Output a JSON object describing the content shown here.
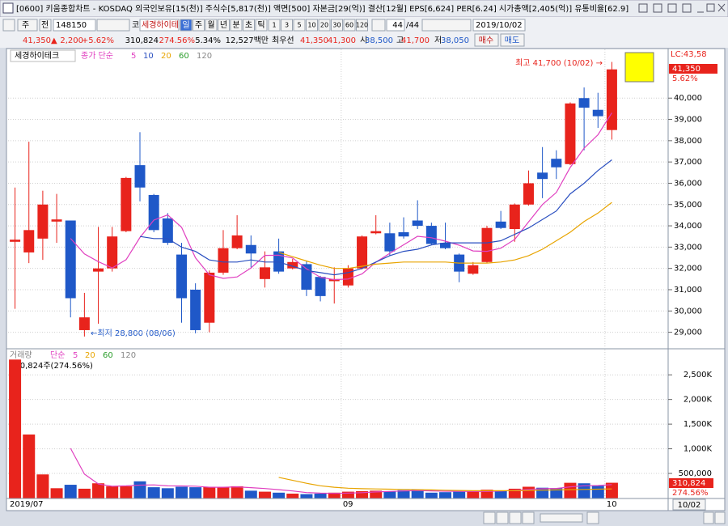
{
  "window": {
    "title_bar": "[0600] 키움종합차트 - KOSDAQ 외국인보유[15(천)] 주식수[5,817(천)] 액면[500] 자본금[29(억)] 결산[12월] EPS[6,624] PER[6.24] 시가총액[2,405(억)] 유통비율[62.9]",
    "toolbar": {
      "market": "주",
      "mode": "전",
      "code": "148150",
      "code_type": "코",
      "name": "세경하이테",
      "periods": [
        "일",
        "주",
        "월",
        "년",
        "분",
        "초",
        "틱"
      ],
      "intervals": [
        "1",
        "3",
        "5",
        "10",
        "20",
        "30",
        "60",
        "120"
      ],
      "count": "44",
      "total": "/44",
      "date": "2019/10/02"
    },
    "quote": {
      "price": "41,350▲",
      "change": "2,200",
      "rate": "+5.62%",
      "volume": "310,824",
      "volume_rate": "274.56%",
      "turnover": "5.34%",
      "amount": "12,527백만",
      "best_label": "최우선",
      "best_ask": "41,350",
      "best_bid": "41,300",
      "open_label": "시",
      "open": "38,500",
      "high_label": "고",
      "high": "41,700",
      "low_label": "저",
      "low": "38,050",
      "buy": "매수",
      "sell": "매도"
    }
  },
  "chart_data": [
    {
      "type": "candlestick",
      "title": "세경하이테크",
      "legend_title": "종가 단순",
      "up_color": "#e8231c",
      "down_color": "#1f58c8",
      "grid": true,
      "open": [
        33250,
        32750,
        33400,
        34200,
        34250,
        29100,
        31850,
        32000,
        33750,
        36850,
        35450,
        34350,
        32650,
        31000,
        29450,
        31800,
        32950,
        33100,
        31500,
        32800,
        32000,
        32200,
        31600,
        31400,
        31200,
        32000,
        33650,
        33650,
        33700,
        34250,
        34000,
        33200,
        32650,
        31750,
        32300,
        34200,
        33850,
        35000,
        36500,
        37150,
        36900,
        40000,
        39450,
        38500
      ],
      "high": [
        35800,
        37950,
        35650,
        35500,
        34250,
        30850,
        33950,
        33950,
        36300,
        38400,
        35500,
        34600,
        33200,
        31300,
        31900,
        33800,
        34500,
        33550,
        32800,
        33400,
        32450,
        32350,
        31650,
        32050,
        32150,
        33550,
        34500,
        34150,
        34400,
        35200,
        34150,
        34150,
        32700,
        32300,
        34000,
        34700,
        35050,
        36600,
        37700,
        37550,
        39800,
        40500,
        40250,
        41700
      ],
      "low": [
        30100,
        32250,
        32400,
        33200,
        29700,
        28800,
        29400,
        31850,
        33700,
        35150,
        33700,
        33100,
        29450,
        28950,
        29000,
        31700,
        32900,
        32050,
        31100,
        31750,
        31950,
        30700,
        30450,
        30350,
        31100,
        31950,
        33600,
        32600,
        33400,
        33850,
        33100,
        32900,
        31350,
        31700,
        32250,
        33850,
        33250,
        34950,
        35300,
        36200,
        36850,
        37550,
        38600,
        38050
      ],
      "close": [
        33350,
        33800,
        35000,
        34300,
        30600,
        29700,
        32000,
        33500,
        36250,
        35800,
        33800,
        33200,
        30600,
        29100,
        31800,
        32950,
        33550,
        32700,
        32050,
        31850,
        32300,
        31000,
        30700,
        31500,
        32000,
        33500,
        33750,
        32800,
        33500,
        34000,
        33150,
        32950,
        31850,
        32150,
        33900,
        33900,
        35000,
        36000,
        36200,
        36750,
        39750,
        39550,
        39150,
        41350
      ],
      "series": [
        {
          "name": "5",
          "color": "#e040c0",
          "values": [
            null,
            null,
            null,
            null,
            33410,
            32680,
            32320,
            32020,
            32410,
            33450,
            34270,
            34510,
            33930,
            32500,
            31700,
            31530,
            31600,
            32020,
            32610,
            32620,
            32490,
            31980,
            31580,
            31470,
            31500,
            31740,
            32290,
            32710,
            33110,
            33510,
            33440,
            33280,
            33090,
            32820,
            32800,
            32950,
            33360,
            34190,
            35000,
            35570,
            36740,
            37650,
            38280,
            39310
          ]
        },
        {
          "name": "10",
          "color": "#2a4fc0",
          "values": [
            null,
            null,
            null,
            null,
            null,
            null,
            null,
            null,
            null,
            33500,
            33400,
            33400,
            33000,
            32800,
            32400,
            32300,
            32300,
            32400,
            32300,
            32300,
            32100,
            31900,
            31800,
            31700,
            31800,
            32000,
            32300,
            32600,
            32800,
            32900,
            33100,
            33200,
            33200,
            33200,
            33200,
            33300,
            33600,
            33900,
            34300,
            34700,
            35500,
            36000,
            36600,
            37100
          ]
        },
        {
          "name": "20",
          "color": "#e8a400",
          "values": [
            null,
            null,
            null,
            null,
            null,
            null,
            null,
            null,
            null,
            null,
            null,
            null,
            null,
            null,
            null,
            null,
            null,
            null,
            null,
            32750,
            32550,
            32350,
            32150,
            32000,
            32000,
            32100,
            32200,
            32250,
            32300,
            32300,
            32300,
            32300,
            32250,
            32250,
            32250,
            32300,
            32400,
            32600,
            32900,
            33300,
            33700,
            34200,
            34600,
            35100
          ]
        }
      ],
      "legend_more": [
        {
          "name": "60",
          "color": "#2a9d2a"
        },
        {
          "name": "120",
          "color": "#888888"
        }
      ],
      "ylim": [
        28300,
        42100
      ],
      "yticks": [
        {
          "value": 29000,
          "label": "29,000"
        },
        {
          "value": 30000,
          "label": "30,000"
        },
        {
          "value": 31000,
          "label": "31,000"
        },
        {
          "value": 32000,
          "label": "32,000"
        },
        {
          "value": 33000,
          "label": "33,000"
        },
        {
          "value": 34000,
          "label": "34,000"
        },
        {
          "value": 35000,
          "label": "35,000"
        },
        {
          "value": 36000,
          "label": "36,000"
        },
        {
          "value": 37000,
          "label": "37,000"
        },
        {
          "value": 38000,
          "label": "38,000"
        },
        {
          "value": 39000,
          "label": "39,000"
        },
        {
          "value": 40000,
          "label": "40,000"
        }
      ],
      "corner_label": "LC:43,58",
      "last_label": "41,350",
      "change_label": "5.62%",
      "high_annotation": "최고 41,700 (10/02) →",
      "low_annotation": "←최저 28,800 (08/06)"
    },
    {
      "type": "bar",
      "title": "거래량",
      "legend_title": "단순",
      "note": "310,824주(274.56%)",
      "grid": true,
      "categories": [
        "2019/07",
        null,
        null,
        null,
        null,
        null,
        null,
        null,
        null,
        null,
        null,
        null,
        null,
        null,
        null,
        null,
        null,
        null,
        null,
        null,
        null,
        null,
        null,
        "09",
        null,
        null,
        null,
        null,
        null,
        null,
        null,
        null,
        null,
        null,
        null,
        null,
        null,
        null,
        null,
        null,
        null,
        null,
        "10",
        null
      ],
      "values": [
        2810000,
        1290000,
        480000,
        200000,
        270000,
        190000,
        300000,
        240000,
        240000,
        340000,
        220000,
        200000,
        230000,
        220000,
        230000,
        220000,
        240000,
        150000,
        130000,
        110000,
        90000,
        80000,
        90000,
        110000,
        130000,
        140000,
        150000,
        140000,
        160000,
        170000,
        110000,
        120000,
        130000,
        140000,
        170000,
        150000,
        190000,
        230000,
        210000,
        200000,
        310000,
        300000,
        250000,
        310824
      ],
      "series": [
        {
          "name": "5",
          "color": "#e040c0",
          "values": [
            null,
            null,
            null,
            null,
            1010000,
            486000,
            288000,
            240000,
            248000,
            262000,
            268000,
            248000,
            246000,
            242000,
            220000,
            220000,
            228000,
            212000,
            194000,
            170000,
            144000,
            112000,
            100000,
            96000,
            100000,
            110000,
            124000,
            134000,
            144000,
            152000,
            146000,
            140000,
            138000,
            134000,
            134000,
            142000,
            156000,
            176000,
            190000,
            196000,
            228000,
            250000,
            254000,
            274000
          ]
        },
        {
          "name": "20",
          "color": "#e8a400",
          "values": [
            null,
            null,
            null,
            null,
            null,
            null,
            null,
            null,
            null,
            null,
            null,
            null,
            null,
            null,
            null,
            null,
            null,
            null,
            null,
            420000,
            360000,
            300000,
            250000,
            220000,
            200000,
            190000,
            185000,
            180000,
            175000,
            170000,
            165000,
            160000,
            155000,
            150000,
            150000,
            150000,
            150000,
            155000,
            160000,
            165000,
            170000,
            175000,
            180000,
            185000
          ]
        }
      ],
      "legend_more": [
        {
          "name": "60",
          "color": "#2a9d2a"
        },
        {
          "name": "120",
          "color": "#888888"
        }
      ],
      "ylim": [
        0,
        2930000
      ],
      "yticks": [
        {
          "value": 500000,
          "label": "500,000"
        },
        {
          "value": 1000000,
          "label": "1,000K"
        },
        {
          "value": 1500000,
          "label": "1,500K"
        },
        {
          "value": 2000000,
          "label": "2,000K"
        },
        {
          "value": 2500000,
          "label": "2,500K"
        }
      ],
      "last_label": "310,824",
      "ratio_label": "274.56%",
      "date_label": "10/02"
    }
  ]
}
